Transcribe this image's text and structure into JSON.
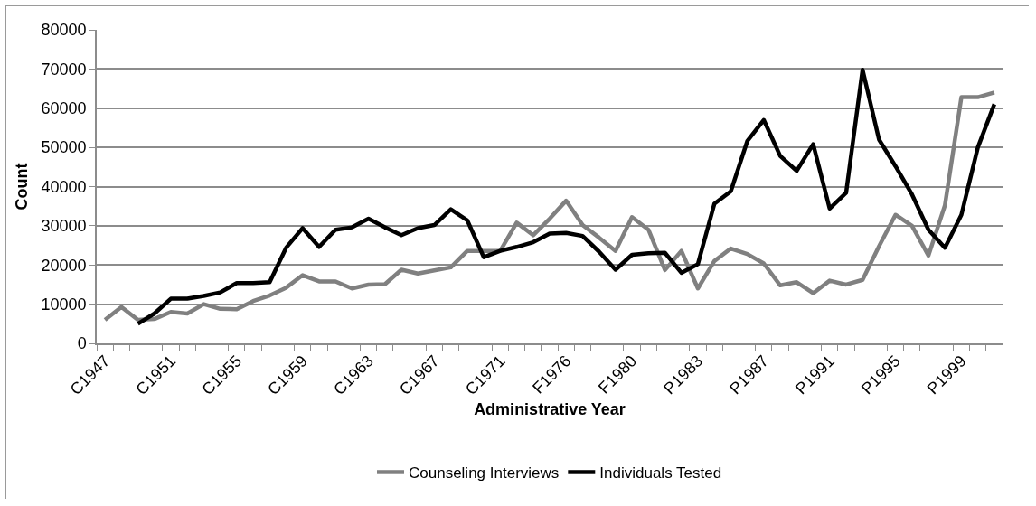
{
  "chart_data": {
    "type": "line",
    "xlabel": "Administrative Year",
    "ylabel": "Count",
    "categories": [
      "C1947",
      null,
      null,
      null,
      "C1951",
      null,
      null,
      null,
      "C1955",
      null,
      null,
      null,
      "C1959",
      null,
      null,
      null,
      "C1963",
      null,
      null,
      null,
      "C1967",
      null,
      null,
      null,
      "C1971",
      null,
      null,
      null,
      "F1976",
      null,
      null,
      null,
      "F1980",
      null,
      null,
      null,
      "P1983",
      null,
      null,
      null,
      "P1987",
      null,
      null,
      null,
      "P1991",
      null,
      null,
      null,
      "P1995",
      null,
      null,
      null,
      "P1999",
      null,
      null
    ],
    "series": [
      {
        "name": "Counseling Interviews",
        "color": "#808080",
        "values": [
          6000,
          9300,
          6000,
          6200,
          8000,
          7600,
          10000,
          8800,
          8700,
          10800,
          12200,
          14200,
          17400,
          15800,
          15800,
          14000,
          15000,
          15100,
          18800,
          17800,
          18600,
          19400,
          23600,
          23600,
          23600,
          30800,
          27600,
          31800,
          36400,
          30200,
          27000,
          23600,
          32200,
          29000,
          18700,
          23600,
          14000,
          21000,
          24200,
          22800,
          20400,
          14800,
          15600,
          12800,
          16000,
          15000,
          16200,
          24800,
          32800,
          30000,
          22400,
          35200,
          62800,
          62800,
          64000
        ]
      },
      {
        "name": "Individuals Tested",
        "color": "#000000",
        "values": [
          null,
          null,
          5000,
          7600,
          11400,
          11400,
          12100,
          13000,
          15400,
          15400,
          15600,
          24400,
          29400,
          24600,
          29000,
          29600,
          31800,
          29600,
          27600,
          29400,
          30200,
          34200,
          31400,
          22000,
          23600,
          24600,
          25800,
          28000,
          28200,
          27400,
          23400,
          18800,
          22600,
          23000,
          23100,
          18000,
          20200,
          35600,
          38800,
          51600,
          57000,
          47800,
          44000,
          50800,
          34400,
          38400,
          69800,
          52000,
          45200,
          38000,
          29000,
          24400,
          32800,
          50000,
          61000
        ]
      }
    ],
    "ylim": [
      0,
      80000
    ],
    "yticks": [
      0,
      10000,
      20000,
      30000,
      40000,
      50000,
      60000,
      70000,
      80000
    ],
    "grid": "y",
    "legend": "bottom",
    "marker": "none",
    "line_style": "solid"
  }
}
